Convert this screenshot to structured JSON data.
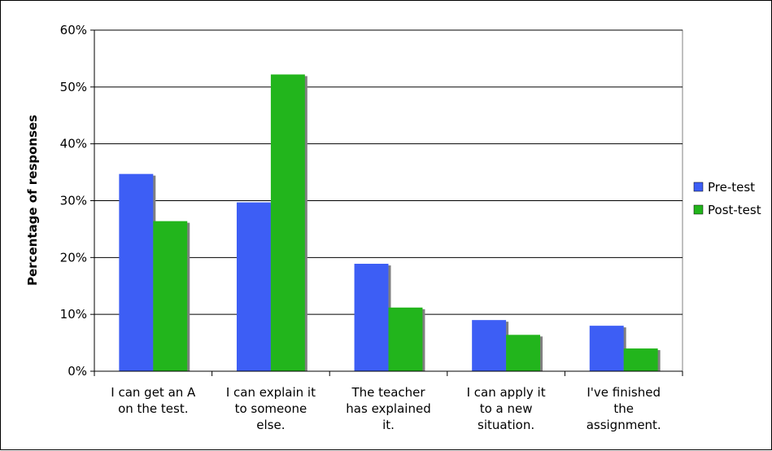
{
  "chart_data": {
    "type": "bar",
    "title": "",
    "xlabel": "",
    "ylabel": "Percentage of responses",
    "ylim": [
      0,
      0.6
    ],
    "yticks": [
      0,
      0.1,
      0.2,
      0.3,
      0.4,
      0.5,
      0.6
    ],
    "ytick_labels": [
      "0%",
      "10%",
      "20%",
      "30%",
      "40%",
      "50%",
      "60%"
    ],
    "categories": [
      [
        "I can get an A",
        "on the test."
      ],
      [
        "I can explain it",
        "to someone",
        "else."
      ],
      [
        "The teacher",
        "has explained",
        "it."
      ],
      [
        "I can apply it",
        "to a new",
        "situation."
      ],
      [
        "I've finished",
        "the",
        "assignment."
      ]
    ],
    "series": [
      {
        "name": "Pre-test",
        "color": "#3d5ef5",
        "values": [
          0.347,
          0.297,
          0.189,
          0.09,
          0.08
        ]
      },
      {
        "name": "Post-test",
        "color": "#22b51c",
        "values": [
          0.264,
          0.522,
          0.112,
          0.064,
          0.04
        ]
      }
    ],
    "grid": true,
    "legend": "right"
  }
}
